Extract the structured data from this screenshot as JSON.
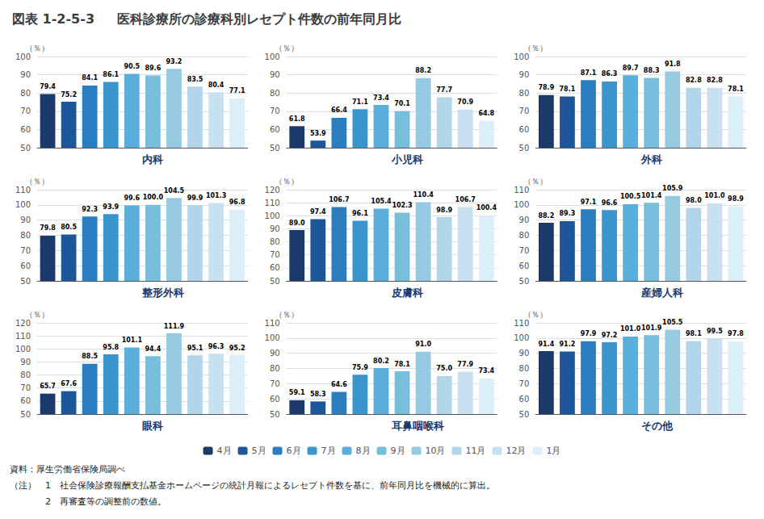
{
  "title": "図表 1-2-5-3",
  "subtitle": "医科診療所の診療科別レセプト件数の前年同月比",
  "annotations": [
    "資料：厚生労働省保険局調べ",
    "（注）　1　社会保険診療報酬支払基金ホームページの統計月報によるレセプト件数を基に、前年同月比を機械的に算出。",
    "　　　　2　再審査等の調整前の数値。"
  ],
  "legend": "bottom",
  "chart_data": [
    {
      "type": "bar",
      "title": "内科",
      "ylabel": "（％）",
      "categories": [
        "4月",
        "5月",
        "6月",
        "7月",
        "8月",
        "9月",
        "10月",
        "11月",
        "12月",
        "1月"
      ],
      "values": [
        79.4,
        75.2,
        84.1,
        86.1,
        90.5,
        89.6,
        93.2,
        83.5,
        80.4,
        77.1
      ],
      "value_labels": [
        "79.4",
        "75.2",
        "84.1",
        "86.1",
        "90.5",
        "89.6",
        "93.2",
        "83.5",
        "80.4",
        "77.1"
      ],
      "colors": [
        "#1b3a6b",
        "#1e5799",
        "#2a7dbf",
        "#3995cc",
        "#5aaedb",
        "#77bedd",
        "#96cae3",
        "#b3d5e9",
        "#c9e0f0",
        "#dceef8"
      ],
      "ylim": [
        50,
        100
      ],
      "yticks": [
        50,
        60,
        70,
        80,
        90,
        100
      ],
      "grid": true,
      "data_labels": true,
      "tick_labels": "y"
    },
    {
      "type": "bar",
      "title": "小児科",
      "ylabel": "（％）",
      "categories": [
        "4月",
        "5月",
        "6月",
        "7月",
        "8月",
        "9月",
        "10月",
        "11月",
        "12月",
        "1月"
      ],
      "values": [
        61.8,
        53.9,
        66.4,
        71.1,
        73.4,
        70.1,
        88.2,
        77.7,
        70.9,
        64.8
      ],
      "value_labels": [
        "61.8",
        "53.9",
        "66.4",
        "71.1",
        "73.4",
        "70.1",
        "88.2",
        "77.7",
        "70.9",
        "64.8"
      ],
      "colors": [
        "#1b3a6b",
        "#1e5799",
        "#2a7dbf",
        "#3995cc",
        "#5aaedb",
        "#77bedd",
        "#96cae3",
        "#b3d5e9",
        "#c9e0f0",
        "#dceef8"
      ],
      "ylim": [
        50,
        100
      ],
      "yticks": [
        50,
        60,
        70,
        80,
        90,
        100
      ],
      "grid": true,
      "data_labels": true,
      "tick_labels": "y"
    },
    {
      "type": "bar",
      "title": "外科",
      "ylabel": "（％）",
      "categories": [
        "4月",
        "5月",
        "6月",
        "7月",
        "8月",
        "9月",
        "10月",
        "11月",
        "12月",
        "1月"
      ],
      "values": [
        78.9,
        78.1,
        87.1,
        86.3,
        89.7,
        88.3,
        91.8,
        82.8,
        82.8,
        78.1
      ],
      "value_labels": [
        "78.9",
        "78.1",
        "87.1",
        "86.3",
        "89.7",
        "88.3",
        "91.8",
        "82.8",
        "82.8",
        "78.1"
      ],
      "colors": [
        "#1b3a6b",
        "#1e5799",
        "#2a7dbf",
        "#3995cc",
        "#5aaedb",
        "#77bedd",
        "#96cae3",
        "#b3d5e9",
        "#c9e0f0",
        "#dceef8"
      ],
      "ylim": [
        50,
        100
      ],
      "yticks": [
        50,
        60,
        70,
        80,
        90,
        100
      ],
      "grid": true,
      "data_labels": true,
      "tick_labels": "y"
    },
    {
      "type": "bar",
      "title": "整形外科",
      "ylabel": "（％）",
      "categories": [
        "4月",
        "5月",
        "6月",
        "7月",
        "8月",
        "9月",
        "10月",
        "11月",
        "12月",
        "1月"
      ],
      "values": [
        79.8,
        80.5,
        92.3,
        93.9,
        99.6,
        100.0,
        104.5,
        99.9,
        101.3,
        96.8
      ],
      "value_labels": [
        "79.8",
        "80.5",
        "92.3",
        "93.9",
        "99.6",
        "100.0",
        "104.5",
        "99.9",
        "101.3",
        "96.8"
      ],
      "colors": [
        "#1b3a6b",
        "#1e5799",
        "#2a7dbf",
        "#3995cc",
        "#5aaedb",
        "#77bedd",
        "#96cae3",
        "#b3d5e9",
        "#c9e0f0",
        "#dceef8"
      ],
      "ylim": [
        50,
        110
      ],
      "yticks": [
        50,
        60,
        70,
        80,
        90,
        100,
        110
      ],
      "grid": true,
      "data_labels": true,
      "tick_labels": "y"
    },
    {
      "type": "bar",
      "title": "皮膚科",
      "ylabel": "（％）",
      "categories": [
        "4月",
        "5月",
        "6月",
        "7月",
        "8月",
        "9月",
        "10月",
        "11月",
        "12月",
        "1月"
      ],
      "values": [
        89.0,
        97.4,
        106.7,
        96.1,
        105.4,
        102.3,
        110.4,
        98.9,
        106.7,
        100.4
      ],
      "value_labels": [
        "89.0",
        "97.4",
        "106.7",
        "96.1",
        "105.4",
        "102.3",
        "110.4",
        "98.9",
        "106.7",
        "100.4"
      ],
      "colors": [
        "#1b3a6b",
        "#1e5799",
        "#2a7dbf",
        "#3995cc",
        "#5aaedb",
        "#77bedd",
        "#96cae3",
        "#b3d5e9",
        "#c9e0f0",
        "#dceef8"
      ],
      "ylim": [
        50,
        120
      ],
      "yticks": [
        50,
        60,
        70,
        80,
        90,
        100,
        110,
        120
      ],
      "grid": true,
      "data_labels": true,
      "tick_labels": "y"
    },
    {
      "type": "bar",
      "title": "産婦人科",
      "ylabel": "（％）",
      "categories": [
        "4月",
        "5月",
        "6月",
        "7月",
        "8月",
        "9月",
        "10月",
        "11月",
        "12月",
        "1月"
      ],
      "values": [
        88.2,
        89.3,
        97.1,
        96.6,
        100.5,
        101.4,
        105.9,
        98.0,
        101.0,
        98.9
      ],
      "value_labels": [
        "88.2",
        "89.3",
        "97.1",
        "96.6",
        "100.5",
        "101.4",
        "105.9",
        "98.0",
        "101.0",
        "98.9"
      ],
      "colors": [
        "#1b3a6b",
        "#1e5799",
        "#2a7dbf",
        "#3995cc",
        "#5aaedb",
        "#77bedd",
        "#96cae3",
        "#b3d5e9",
        "#c9e0f0",
        "#dceef8"
      ],
      "ylim": [
        50,
        110
      ],
      "yticks": [
        50,
        60,
        70,
        80,
        90,
        100,
        110
      ],
      "grid": true,
      "data_labels": true,
      "tick_labels": "y"
    },
    {
      "type": "bar",
      "title": "眼科",
      "ylabel": "（％）",
      "categories": [
        "4月",
        "5月",
        "6月",
        "7月",
        "8月",
        "9月",
        "10月",
        "11月",
        "12月",
        "1月"
      ],
      "values": [
        65.7,
        67.6,
        88.5,
        95.8,
        101.1,
        94.4,
        111.9,
        95.1,
        96.3,
        95.2
      ],
      "value_labels": [
        "65.7",
        "67.6",
        "88.5",
        "95.8",
        "101.1",
        "94.4",
        "111.9",
        "95.1",
        "96.3",
        "95.2"
      ],
      "colors": [
        "#1b3a6b",
        "#1e5799",
        "#2a7dbf",
        "#3995cc",
        "#5aaedb",
        "#77bedd",
        "#96cae3",
        "#b3d5e9",
        "#c9e0f0",
        "#dceef8"
      ],
      "ylim": [
        50,
        120
      ],
      "yticks": [
        50,
        60,
        70,
        80,
        90,
        100,
        110,
        120
      ],
      "grid": true,
      "data_labels": true,
      "tick_labels": "y"
    },
    {
      "type": "bar",
      "title": "耳鼻咽喉科",
      "ylabel": "（％）",
      "categories": [
        "4月",
        "5月",
        "6月",
        "7月",
        "8月",
        "9月",
        "10月",
        "11月",
        "12月",
        "1月"
      ],
      "values": [
        59.1,
        58.3,
        64.6,
        75.9,
        80.2,
        78.1,
        91.0,
        75.0,
        77.9,
        73.4
      ],
      "value_labels": [
        "59.1",
        "58.3",
        "64.6",
        "75.9",
        "80.2",
        "78.1",
        "91.0",
        "75.0",
        "77.9",
        "73.4"
      ],
      "colors": [
        "#1b3a6b",
        "#1e5799",
        "#2a7dbf",
        "#3995cc",
        "#5aaedb",
        "#77bedd",
        "#96cae3",
        "#b3d5e9",
        "#c9e0f0",
        "#dceef8"
      ],
      "ylim": [
        50,
        110
      ],
      "yticks": [
        50,
        60,
        70,
        80,
        90,
        100,
        110
      ],
      "grid": true,
      "data_labels": true,
      "tick_labels": "y"
    },
    {
      "type": "bar",
      "title": "その他",
      "ylabel": "（％）",
      "categories": [
        "4月",
        "5月",
        "6月",
        "7月",
        "8月",
        "9月",
        "10月",
        "11月",
        "12月",
        "1月"
      ],
      "values": [
        91.4,
        91.2,
        97.9,
        97.2,
        101.0,
        101.9,
        105.5,
        98.1,
        99.5,
        97.8
      ],
      "value_labels": [
        "91.4",
        "91.2",
        "97.9",
        "97.2",
        "101.0",
        "101.9",
        "105.5",
        "98.1",
        "99.5",
        "97.8"
      ],
      "colors": [
        "#1b3a6b",
        "#1e5799",
        "#2a7dbf",
        "#3995cc",
        "#5aaedb",
        "#77bedd",
        "#96cae3",
        "#b3d5e9",
        "#c9e0f0",
        "#dceef8"
      ],
      "ylim": [
        50,
        110
      ],
      "yticks": [
        50,
        60,
        70,
        80,
        90,
        100,
        110
      ],
      "grid": true,
      "data_labels": true,
      "tick_labels": "y"
    }
  ]
}
